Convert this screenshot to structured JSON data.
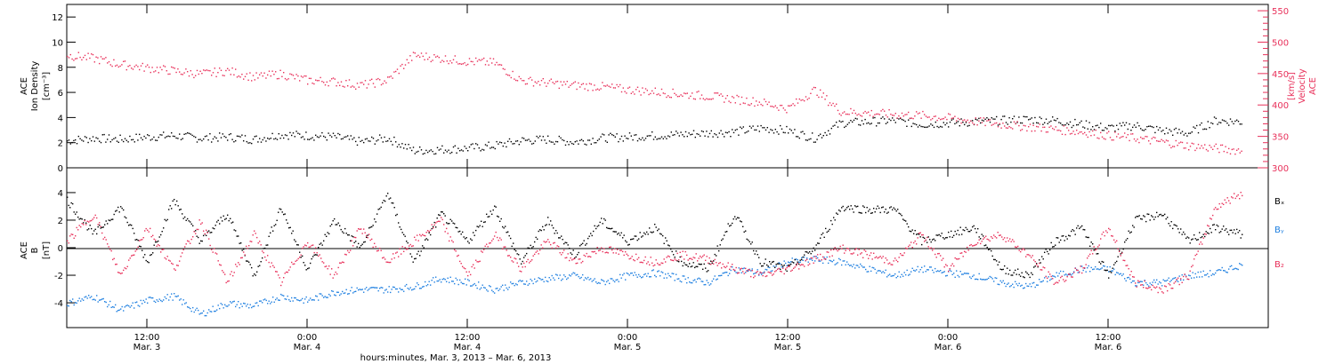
{
  "chart_data": [
    {
      "type": "scatter",
      "panel": "top",
      "ylabel": [
        "ACE",
        "Ion Density",
        "[cm⁻³]"
      ],
      "ylabel_right": [
        "ACE",
        "Velocity",
        "[km/s]"
      ],
      "ylim": [
        0,
        13
      ],
      "yticks": [
        0,
        2,
        4,
        6,
        8,
        10,
        12
      ],
      "ylim_right": [
        300,
        560
      ],
      "yticks_right": [
        300,
        350,
        400,
        450,
        500,
        550
      ],
      "xlim_hours": [
        0,
        90
      ],
      "series": [
        {
          "color": "#000000",
          "axis": "left",
          "x_hours": [
            0,
            2,
            4,
            6,
            8,
            10,
            12,
            14,
            16,
            18,
            20,
            22,
            24,
            26,
            28,
            30,
            32,
            34,
            36,
            38,
            40,
            42,
            44,
            46,
            48,
            50,
            52,
            54,
            56,
            58,
            60,
            62,
            64,
            66,
            68,
            70,
            72,
            74,
            76,
            78,
            80,
            82,
            84,
            86,
            88
          ],
          "values": [
            2.2,
            2.4,
            2.3,
            2.5,
            2.6,
            2.4,
            2.5,
            2.3,
            2.7,
            2.6,
            2.5,
            2.1,
            2.4,
            1.4,
            1.5,
            1.6,
            1.8,
            2.2,
            2.3,
            2.1,
            2.4,
            2.5,
            2.6,
            2.7,
            2.8,
            2.9,
            3.2,
            3.0,
            2.4,
            3.6,
            3.7,
            3.8,
            3.5,
            3.6,
            3.7,
            3.8,
            3.9,
            3.8,
            3.5,
            3.2,
            3.4,
            3.0,
            2.8,
            3.8,
            3.7
          ]
        },
        {
          "color": "#e8305a",
          "axis": "right",
          "x_hours": [
            0,
            2,
            4,
            6,
            8,
            10,
            12,
            14,
            16,
            18,
            20,
            22,
            24,
            26,
            28,
            30,
            32,
            34,
            36,
            38,
            40,
            42,
            44,
            46,
            48,
            50,
            52,
            54,
            56,
            58,
            60,
            62,
            64,
            66,
            68,
            70,
            72,
            74,
            76,
            78,
            80,
            82,
            84,
            86,
            88
          ],
          "values": [
            480,
            475,
            465,
            460,
            455,
            450,
            455,
            445,
            450,
            440,
            438,
            432,
            440,
            480,
            475,
            470,
            468,
            440,
            436,
            432,
            430,
            425,
            422,
            418,
            415,
            410,
            405,
            395,
            425,
            390,
            388,
            386,
            384,
            380,
            375,
            370,
            366,
            362,
            358,
            352,
            348,
            342,
            336,
            332,
            328
          ]
        }
      ]
    },
    {
      "type": "scatter",
      "panel": "bottom",
      "ylabel": [
        "ACE",
        "B",
        "[nT]"
      ],
      "ylim": [
        -5.8,
        5.8
      ],
      "yticks": [
        -4,
        -2,
        0,
        2,
        4
      ],
      "xlim_hours": [
        0,
        90
      ],
      "legend": [
        "Bₓ",
        "Bᵧ",
        "B₂"
      ],
      "legend_placement": "right",
      "series": [
        {
          "name": "Bx",
          "color": "#000000",
          "x_hours": [
            0,
            2,
            4,
            6,
            8,
            10,
            12,
            14,
            16,
            18,
            20,
            22,
            24,
            26,
            28,
            30,
            32,
            34,
            36,
            38,
            40,
            42,
            44,
            46,
            48,
            50,
            52,
            54,
            56,
            58,
            60,
            62,
            64,
            66,
            68,
            70,
            72,
            74,
            76,
            78,
            80,
            82,
            84,
            86,
            88
          ],
          "values": [
            3.5,
            1.0,
            3.0,
            -1.0,
            3.5,
            0.5,
            2.5,
            -2.0,
            3.0,
            -1.5,
            2.0,
            0.0,
            4.0,
            -1.0,
            2.5,
            0.5,
            3.0,
            -1.0,
            2.0,
            -0.5,
            2.0,
            0.5,
            1.5,
            -1.0,
            -1.5,
            2.5,
            -1.0,
            -1.5,
            0.0,
            3.0,
            2.8,
            2.8,
            0.5,
            1.0,
            1.5,
            -1.5,
            -2.0,
            0.5,
            1.5,
            -2.0,
            2.0,
            2.5,
            0.5,
            1.5,
            1.0
          ]
        },
        {
          "name": "By",
          "color": "#1e7fe0",
          "x_hours": [
            0,
            2,
            4,
            6,
            8,
            10,
            12,
            14,
            16,
            18,
            20,
            22,
            24,
            26,
            28,
            30,
            32,
            34,
            36,
            38,
            40,
            42,
            44,
            46,
            48,
            50,
            52,
            54,
            56,
            58,
            60,
            62,
            64,
            66,
            68,
            70,
            72,
            74,
            76,
            78,
            80,
            82,
            84,
            86,
            88
          ],
          "values": [
            -4.0,
            -3.5,
            -4.5,
            -3.8,
            -3.5,
            -4.8,
            -4.0,
            -4.2,
            -3.5,
            -3.8,
            -3.2,
            -3.0,
            -3.0,
            -2.8,
            -2.2,
            -2.5,
            -3.0,
            -2.5,
            -2.2,
            -2.0,
            -2.5,
            -2.0,
            -1.8,
            -2.2,
            -2.5,
            -1.5,
            -1.8,
            -1.0,
            -0.8,
            -1.0,
            -1.5,
            -2.0,
            -1.5,
            -1.8,
            -2.0,
            -2.5,
            -2.8,
            -2.0,
            -1.5,
            -1.5,
            -2.5,
            -2.5,
            -2.0,
            -1.8,
            -1.2
          ]
        },
        {
          "name": "Bz",
          "color": "#e8305a",
          "x_hours": [
            0,
            2,
            4,
            6,
            8,
            10,
            12,
            14,
            16,
            18,
            20,
            22,
            24,
            26,
            28,
            30,
            32,
            34,
            36,
            38,
            40,
            42,
            44,
            46,
            48,
            50,
            52,
            54,
            56,
            58,
            60,
            62,
            64,
            66,
            68,
            70,
            72,
            74,
            76,
            78,
            80,
            82,
            84,
            86,
            88
          ],
          "values": [
            0.5,
            2.5,
            -2.0,
            1.5,
            -1.5,
            2.0,
            -2.5,
            1.0,
            -2.5,
            0.5,
            -2.0,
            1.5,
            -1.0,
            0.5,
            2.0,
            -2.0,
            1.0,
            -1.5,
            0.5,
            -1.0,
            0.0,
            -0.5,
            -1.0,
            -0.5,
            -0.8,
            -1.5,
            -2.0,
            -1.5,
            -0.8,
            0.0,
            -0.5,
            -1.0,
            1.0,
            -1.5,
            0.5,
            1.0,
            -0.5,
            -2.5,
            -1.5,
            1.5,
            -2.5,
            -3.0,
            -2.0,
            3.0,
            4.0
          ]
        }
      ]
    }
  ],
  "x_axis": {
    "ticks": [
      {
        "hours": 6,
        "time": "12:00",
        "date": "Mar. 3"
      },
      {
        "hours": 18,
        "time": "0:00",
        "date": "Mar. 4"
      },
      {
        "hours": 30,
        "time": "12:00",
        "date": "Mar. 4"
      },
      {
        "hours": 42,
        "time": "0:00",
        "date": "Mar. 5"
      },
      {
        "hours": 54,
        "time": "12:00",
        "date": "Mar. 5"
      },
      {
        "hours": 66,
        "time": "0:00",
        "date": "Mar. 6"
      },
      {
        "hours": 78,
        "time": "12:00",
        "date": "Mar. 6"
      }
    ],
    "title": "hours:minutes, Mar.  3, 2013 – Mar.  6, 2013"
  },
  "colors": {
    "black": "#000000",
    "pink": "#e8305a",
    "blue": "#1e7fe0"
  }
}
